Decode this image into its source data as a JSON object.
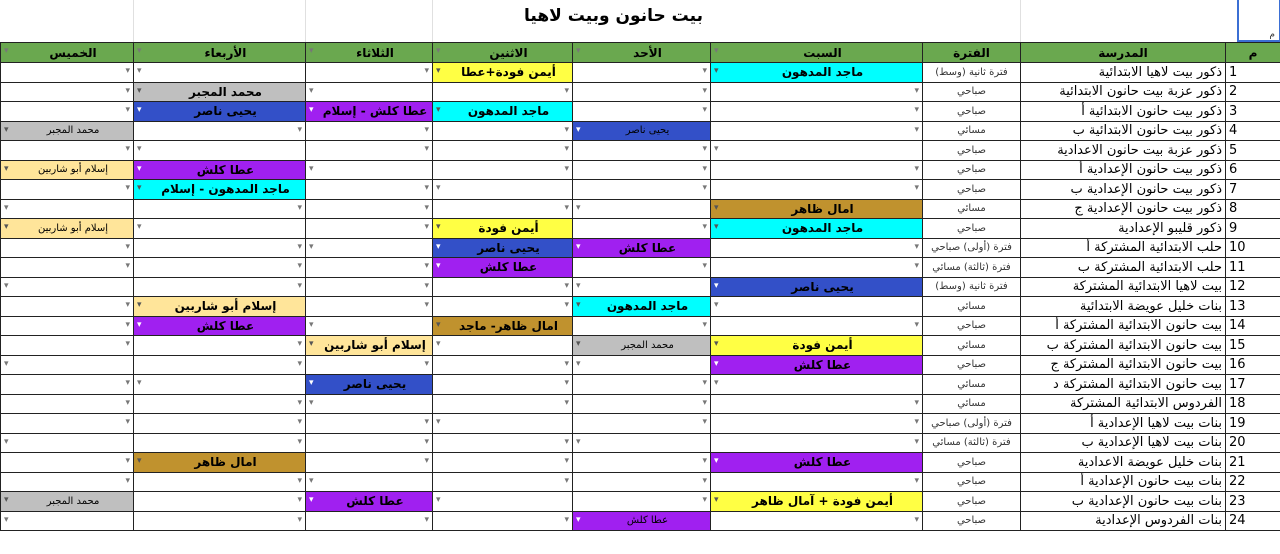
{
  "title": "بيت حانون وبيت لاهيا",
  "corner_label": "م",
  "palette": {
    "cyan": "#00ffff",
    "yellow": "#ffff44",
    "gray": "#bfbfbf",
    "blue": "#3350c8",
    "purple": "#a020f0",
    "gold": "#c0922e",
    "peach": "#ffe59a",
    "header": "#6aa84f"
  },
  "headers": {
    "num": "م",
    "school": "المدرسة",
    "period": "الفترة",
    "days": [
      "السبت",
      "الأحد",
      "الاثنين",
      "الثلاثاء",
      "الأربعاء",
      "الخميس"
    ]
  },
  "rows": [
    {
      "num": "1",
      "school": "ذكور بيت لاهيا الابتدائية",
      "period": "فترة ثانية (وسط)",
      "days": [
        {
          "t": "ماجد المدهون",
          "c": "cyan"
        },
        null,
        {
          "t": "أيمن فودة+عطا",
          "c": "yellow"
        },
        null,
        null,
        null
      ]
    },
    {
      "num": "2",
      "school": "ذكور عزبة بيت حانون الابتدائية",
      "period": "صباحي",
      "days": [
        null,
        null,
        null,
        null,
        {
          "t": "محمد المجبر",
          "c": "gray"
        },
        null
      ]
    },
    {
      "num": "3",
      "school": "ذكور بيت حانون الابتدائية أ",
      "period": "صباحي",
      "days": [
        null,
        null,
        {
          "t": "ماجد المدهون",
          "c": "cyan"
        },
        {
          "t": "عطا كلش - إسلام",
          "c": "purple"
        },
        {
          "t": "يحيى ناصر",
          "c": "blue"
        },
        null
      ]
    },
    {
      "num": "4",
      "school": "ذكور بيت حانون الابتدائية ب",
      "period": "مسائي",
      "days": [
        null,
        {
          "t": "يحيى ناصر",
          "c": "blue",
          "s": true
        },
        null,
        null,
        null,
        {
          "t": "محمد المجبر",
          "c": "gray",
          "s": true
        }
      ]
    },
    {
      "num": "5",
      "school": "ذكور عزبة بيت حانون الاعدادية",
      "period": "صباحي",
      "days": [
        null,
        null,
        null,
        null,
        null,
        null
      ]
    },
    {
      "num": "6",
      "school": "ذكور بيت حانون الإعدادية أ",
      "period": "صباحي",
      "days": [
        null,
        null,
        null,
        null,
        {
          "t": "عطا كلش",
          "c": "purple"
        },
        {
          "t": "إسلام أبو شاربين",
          "c": "peach",
          "s": true
        }
      ]
    },
    {
      "num": "7",
      "school": "ذكور بيت حانون الإعدادية ب",
      "period": "صباحي",
      "days": [
        null,
        null,
        null,
        null,
        {
          "t": "ماجد المدهون - إسلام",
          "c": "cyan"
        },
        null
      ]
    },
    {
      "num": "8",
      "school": "ذكور بيت حانون الإعدادية ج",
      "period": "مسائي",
      "days": [
        {
          "t": "امال ظاهر",
          "c": "gold"
        },
        null,
        null,
        null,
        null,
        null
      ]
    },
    {
      "num": "9",
      "school": "ذكور قليبو الإعدادية",
      "period": "صباحي",
      "days": [
        {
          "t": "ماجد المدهون",
          "c": "cyan"
        },
        null,
        {
          "t": "أيمن فودة",
          "c": "yellow"
        },
        null,
        null,
        {
          "t": "إسلام أبو شاربين",
          "c": "peach",
          "s": true
        }
      ]
    },
    {
      "num": "10",
      "school": "حلب الابتدائية المشتركة أ",
      "period": "فترة (أولى) صباحي",
      "days": [
        null,
        {
          "t": "عطا كلش",
          "c": "purple"
        },
        {
          "t": "يحيى ناصر",
          "c": "blue"
        },
        null,
        null,
        null
      ]
    },
    {
      "num": "11",
      "school": "حلب الابتدائية المشتركة ب",
      "period": "فترة (ثالثة) مسائي",
      "days": [
        null,
        null,
        {
          "t": "عطا كلش",
          "c": "purple"
        },
        null,
        null,
        null
      ]
    },
    {
      "num": "12",
      "school": "بيت لاهيا الابتدائية المشتركة",
      "period": "فترة ثانية (وسط)",
      "days": [
        {
          "t": "يحيى ناصر",
          "c": "blue"
        },
        null,
        null,
        null,
        null,
        null
      ]
    },
    {
      "num": "13",
      "school": "بنات خليل عويضة الابتدائية",
      "period": "مسائي",
      "days": [
        null,
        {
          "t": "ماجد المدهون",
          "c": "cyan"
        },
        null,
        null,
        {
          "t": "إسلام أبو شاربين",
          "c": "peach"
        },
        null
      ]
    },
    {
      "num": "14",
      "school": "بيت حانون الابتدائية المشتركة أ",
      "period": "صباحي",
      "days": [
        null,
        null,
        {
          "t": "امال ظاهر- ماجد",
          "c": "gold"
        },
        null,
        {
          "t": "عطا كلش",
          "c": "purple"
        },
        null
      ]
    },
    {
      "num": "15",
      "school": "بيت حانون الابتدائية المشتركة ب",
      "period": "مسائي",
      "days": [
        {
          "t": "أيمن فودة",
          "c": "yellow"
        },
        {
          "t": "محمد المجبر",
          "c": "gray",
          "s": true
        },
        null,
        {
          "t": "إسلام أبو شاربين",
          "c": "peach"
        },
        null,
        null
      ]
    },
    {
      "num": "16",
      "school": "بيت حانون الابتدائية المشتركة ج",
      "period": "صباحي",
      "days": [
        {
          "t": "عطا كلش",
          "c": "purple"
        },
        null,
        null,
        null,
        null,
        null
      ]
    },
    {
      "num": "17",
      "school": "بيت حانون الابتدائية المشتركة د",
      "period": "مسائي",
      "days": [
        null,
        null,
        null,
        {
          "t": "يحيى ناصر",
          "c": "blue"
        },
        null,
        null
      ]
    },
    {
      "num": "18",
      "school": "الفردوس الابتدائية المشتركة",
      "period": "مسائي",
      "days": [
        null,
        null,
        null,
        null,
        null,
        null
      ]
    },
    {
      "num": "19",
      "school": "بنات بيت لاهيا الإعدادية أ",
      "period": "فترة (أولى) صباحي",
      "days": [
        null,
        null,
        null,
        null,
        null,
        null
      ]
    },
    {
      "num": "20",
      "school": "بنات بيت لاهيا الإعدادية ب",
      "period": "فترة (ثالثة) مسائي",
      "days": [
        null,
        null,
        null,
        null,
        null,
        null
      ]
    },
    {
      "num": "21",
      "school": "بنات خليل عويضة الاعدادية",
      "period": "صباحي",
      "days": [
        {
          "t": "عطا كلش",
          "c": "purple"
        },
        null,
        null,
        null,
        {
          "t": "امال ظاهر",
          "c": "gold"
        },
        null
      ]
    },
    {
      "num": "22",
      "school": "بنات بيت حانون الإعدادية أ",
      "period": "صباحي",
      "days": [
        null,
        null,
        null,
        null,
        null,
        null
      ]
    },
    {
      "num": "23",
      "school": "بنات بيت حانون الإعدادية ب",
      "period": "صباحي",
      "days": [
        {
          "t": "أيمن فودة + آمال ظاهر",
          "c": "yellow"
        },
        null,
        null,
        {
          "t": "عطا كلش",
          "c": "purple"
        },
        null,
        {
          "t": "محمد المجبر",
          "c": "gray",
          "s": true
        }
      ]
    },
    {
      "num": "24",
      "school": "بنات الفردوس الإعدادية",
      "period": "صباحي",
      "days": [
        null,
        {
          "t": "عطا كلش",
          "c": "purple",
          "s": true
        },
        null,
        null,
        null,
        null
      ]
    }
  ]
}
